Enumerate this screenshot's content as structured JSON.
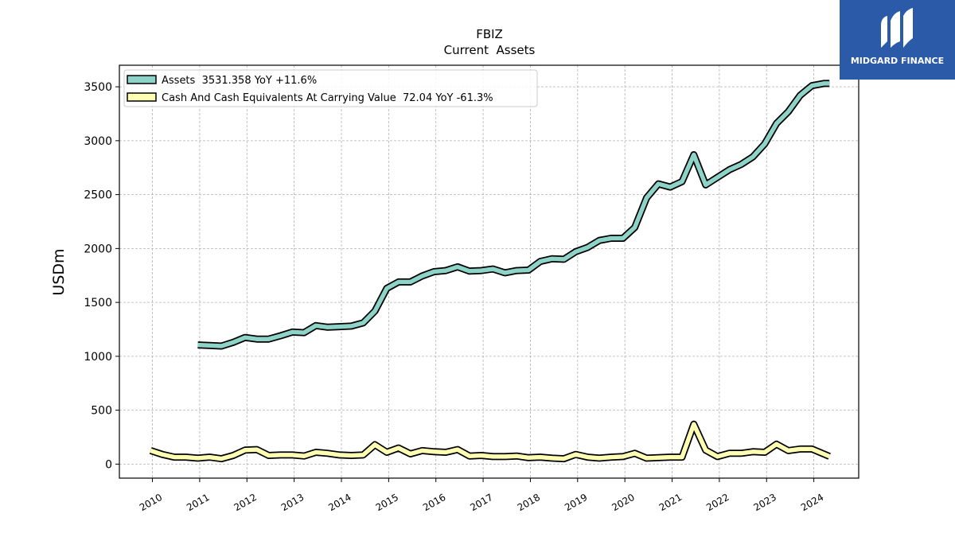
{
  "chart_data": {
    "type": "line",
    "title": "FBIZ",
    "subtitle": "Current  Assets",
    "ylabel": "USDm",
    "xlabel": "",
    "xlim": [
      2009.3,
      2024.95
    ],
    "ylim": [
      -130,
      3700
    ],
    "yticks": [
      0,
      500,
      1000,
      1500,
      2000,
      2500,
      3000,
      3500
    ],
    "xticks": [
      2010,
      2011,
      2012,
      2013,
      2014,
      2015,
      2016,
      2017,
      2018,
      2019,
      2020,
      2021,
      2022,
      2023,
      2024
    ],
    "grid": true,
    "legend_position": "top-left",
    "series": [
      {
        "name": "Assets  3531.358 YoY +11.6%",
        "color": "#8dd3c7",
        "x": [
          2010.96,
          2011.21,
          2011.46,
          2011.71,
          2011.96,
          2012.21,
          2012.46,
          2012.71,
          2012.96,
          2013.21,
          2013.46,
          2013.71,
          2013.96,
          2014.21,
          2014.46,
          2014.71,
          2014.96,
          2015.21,
          2015.46,
          2015.71,
          2015.96,
          2016.21,
          2016.46,
          2016.71,
          2016.96,
          2017.21,
          2017.46,
          2017.71,
          2017.96,
          2018.21,
          2018.46,
          2018.71,
          2018.96,
          2019.21,
          2019.46,
          2019.71,
          2019.96,
          2020.21,
          2020.46,
          2020.71,
          2020.96,
          2021.21,
          2021.46,
          2021.71,
          2021.96,
          2022.21,
          2022.46,
          2022.71,
          2022.96,
          2023.21,
          2023.46,
          2023.71,
          2023.96,
          2024.21,
          2024.33
        ],
        "values": [
          1105,
          1100,
          1095,
          1130,
          1175,
          1160,
          1160,
          1190,
          1225,
          1220,
          1285,
          1270,
          1275,
          1280,
          1310,
          1420,
          1630,
          1690,
          1690,
          1745,
          1785,
          1795,
          1830,
          1790,
          1795,
          1810,
          1775,
          1795,
          1800,
          1880,
          1905,
          1900,
          1970,
          2010,
          2075,
          2095,
          2095,
          2195,
          2470,
          2600,
          2570,
          2620,
          2870,
          2590,
          2660,
          2730,
          2780,
          2850,
          2970,
          3160,
          3270,
          3420,
          3510,
          3531.358,
          3531.358
        ]
      },
      {
        "name": "Cash And Cash Equivalents At Carrying Value  72.04 YoY -61.3%",
        "color": "#ffffb3",
        "x": [
          2009.96,
          2010.21,
          2010.46,
          2010.71,
          2010.96,
          2011.21,
          2011.46,
          2011.71,
          2011.96,
          2012.21,
          2012.46,
          2012.71,
          2012.96,
          2013.21,
          2013.46,
          2013.71,
          2013.96,
          2014.21,
          2014.46,
          2014.71,
          2014.96,
          2015.21,
          2015.46,
          2015.71,
          2015.96,
          2016.21,
          2016.46,
          2016.71,
          2016.96,
          2017.21,
          2017.46,
          2017.71,
          2017.96,
          2018.21,
          2018.46,
          2018.71,
          2018.96,
          2019.21,
          2019.46,
          2019.71,
          2019.96,
          2020.21,
          2020.46,
          2020.71,
          2020.96,
          2021.21,
          2021.46,
          2021.71,
          2021.96,
          2022.21,
          2022.46,
          2022.71,
          2022.96,
          2023.21,
          2023.46,
          2023.71,
          2023.96,
          2024.33
        ],
        "values": [
          125,
          90,
          65,
          65,
          55,
          65,
          50,
          80,
          130,
          135,
          80,
          85,
          85,
          75,
          110,
          100,
          85,
          80,
          85,
          180,
          110,
          150,
          95,
          125,
          115,
          110,
          135,
          75,
          80,
          70,
          70,
          75,
          60,
          65,
          55,
          50,
          90,
          65,
          55,
          65,
          70,
          100,
          55,
          60,
          65,
          65,
          370,
          130,
          70,
          100,
          100,
          115,
          110,
          185,
          125,
          140,
          140,
          72.04
        ]
      }
    ]
  },
  "logo": {
    "text": "MIDGARD FINANCE",
    "bg_color": "#2b5aa8"
  }
}
